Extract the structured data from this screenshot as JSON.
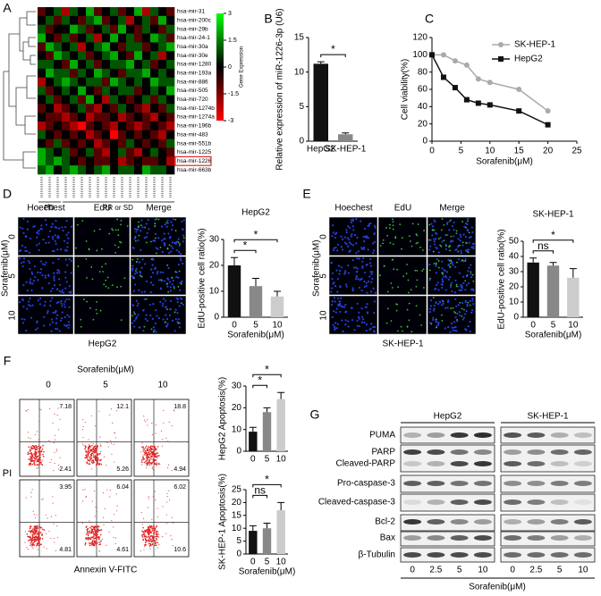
{
  "figure": {
    "panel_labels": [
      "A",
      "B",
      "C",
      "D",
      "E",
      "F",
      "G"
    ]
  },
  "chart_data": [
    {
      "type": "heatmap",
      "rows": [
        "hsa-mir-31",
        "hsa-mir-200c",
        "hsa-mir-29b",
        "hsa-mir-24-1",
        "hsa-mir-30a",
        "hsa-mir-30e",
        "hsa-mir-1280",
        "hsa-mir-193a",
        "hsa-mir-886",
        "hsa-mir-505",
        "hsa-mir-720",
        "hsa-mir-1274b",
        "hsa-mir-1274a",
        "hsa-mir-196b",
        "hsa-mir-483",
        "hsa-mir-551b",
        "hsa-mir-1225",
        "hsa-mir-1226",
        "hsa-mir-663b"
      ],
      "values": [
        [
          -1,
          0,
          1,
          -2,
          1,
          0,
          2,
          -1,
          0,
          1,
          -1,
          0,
          2,
          -2,
          1,
          0,
          -1
        ],
        [
          0,
          1,
          -1,
          1,
          0,
          -1,
          1,
          2,
          -1,
          0,
          1,
          -2,
          0,
          1,
          -1,
          2,
          0
        ],
        [
          1,
          -1,
          0,
          0,
          2,
          1,
          -1,
          0,
          1,
          -1,
          2,
          0,
          -1,
          1,
          0,
          -1,
          1
        ],
        [
          2,
          0,
          -1,
          1,
          -1,
          0,
          1,
          -2,
          0,
          2,
          0,
          1,
          -1,
          0,
          2,
          1,
          -1
        ],
        [
          -1,
          2,
          1,
          0,
          1,
          -2,
          0,
          1,
          2,
          0,
          -1,
          1,
          1,
          -1,
          0,
          1,
          2
        ],
        [
          0,
          -1,
          2,
          1,
          0,
          1,
          -1,
          0,
          1,
          2,
          0,
          -1,
          2,
          0,
          1,
          -2,
          0
        ],
        [
          1,
          1,
          0,
          -1,
          2,
          0,
          1,
          -1,
          0,
          1,
          1,
          2,
          0,
          1,
          -1,
          0,
          1
        ],
        [
          0,
          2,
          1,
          1,
          -1,
          1,
          0,
          2,
          1,
          0,
          -1,
          1,
          1,
          2,
          0,
          1,
          0
        ],
        [
          -2,
          0,
          1,
          2,
          1,
          0,
          1,
          1,
          -1,
          2,
          1,
          0,
          1,
          0,
          2,
          1,
          1
        ],
        [
          1,
          -1,
          0,
          1,
          0,
          2,
          0,
          -1,
          1,
          0,
          1,
          1,
          -1,
          0,
          1,
          0,
          2
        ],
        [
          0,
          1,
          -1,
          0,
          1,
          -1,
          2,
          0,
          -2,
          1,
          0,
          -1,
          0,
          1,
          -1,
          1,
          0
        ],
        [
          -1,
          0,
          -2,
          -1,
          0,
          1,
          -1,
          -2,
          0,
          -1,
          1,
          0,
          -1,
          -2,
          0,
          -1,
          1
        ],
        [
          0,
          -1,
          -1,
          -2,
          -1,
          0,
          -2,
          -1,
          -1,
          0,
          -2,
          -1,
          0,
          -1,
          -2,
          0,
          -1
        ],
        [
          -2,
          -1,
          0,
          -1,
          -2,
          -3,
          -1,
          0,
          -1,
          -2,
          0,
          -1,
          -2,
          -1,
          0,
          -1,
          -2
        ],
        [
          1,
          0,
          -1,
          0,
          -1,
          0,
          -2,
          -1,
          0,
          -3,
          -1,
          0,
          -1,
          0,
          -1,
          -2,
          0
        ],
        [
          0,
          -1,
          1,
          -1,
          0,
          -1,
          0,
          -2,
          -1,
          0,
          -1,
          1,
          0,
          -1,
          0,
          -1,
          1
        ],
        [
          2,
          1,
          0,
          1,
          -1,
          0,
          1,
          -1,
          -2,
          0,
          1,
          -1,
          -2,
          0,
          1,
          0,
          -1
        ],
        [
          2,
          1,
          2,
          1,
          0,
          -1,
          0,
          -1,
          -1,
          0,
          -2,
          -1,
          0,
          -1,
          -1,
          0,
          -2
        ],
        [
          1,
          2,
          0,
          1,
          2,
          1,
          0,
          1,
          2,
          0,
          1,
          1,
          0,
          2,
          1,
          1,
          0
        ]
      ],
      "zlim": [
        -3,
        3
      ],
      "colorbar_ticks": [
        3,
        1.5,
        0,
        -1.5,
        -3
      ],
      "colorbar_label": "Gene Expression",
      "groups": [
        "PD",
        "PR or SD"
      ],
      "highlight_row": 17
    },
    {
      "type": "bar",
      "categories": [
        "HepG2",
        "SK-HEP-1"
      ],
      "values": [
        11.2,
        1.0
      ],
      "errors": [
        0.3,
        0.2
      ],
      "colors": [
        "#111111",
        "#888888"
      ],
      "ylim": [
        0,
        15
      ],
      "yticks": [
        0,
        5,
        10,
        15
      ],
      "y_label": "Relative expression of miR-1226-3p (U6)",
      "annotations": [
        "*"
      ]
    },
    {
      "type": "line",
      "x": [
        0,
        2,
        4,
        6,
        8,
        10,
        15,
        20
      ],
      "series": [
        {
          "name": "SK-HEP-1",
          "color": "#aaaaaa",
          "marker": "circle",
          "values": [
            100,
            100,
            93,
            88,
            72,
            68,
            60,
            35
          ]
        },
        {
          "name": "HepG2",
          "color": "#111111",
          "marker": "square",
          "values": [
            100,
            74,
            62,
            48,
            44,
            42,
            35,
            19
          ]
        }
      ],
      "xlim": [
        0,
        25
      ],
      "xticks": [
        0,
        5,
        10,
        15,
        20,
        25
      ],
      "ylim": [
        0,
        120
      ],
      "yticks": [
        0,
        20,
        40,
        60,
        80,
        100,
        120
      ],
      "x_label": "Sorafenib(μM)",
      "y_label": "Cell viability(%)",
      "legend": "upper right"
    },
    {
      "type": "bar",
      "title": "HepG2",
      "categories": [
        "0",
        "5",
        "10"
      ],
      "values": [
        20,
        12,
        8
      ],
      "errors": [
        3,
        3,
        2
      ],
      "colors": [
        "#111111",
        "#888888",
        "#cccccc"
      ],
      "ylim": [
        0,
        30
      ],
      "yticks": [
        0,
        10,
        20,
        30
      ],
      "x_label": "Sorafenib(μM)",
      "y_label": "EdU-positive cell ratio(%)",
      "annotations": [
        "*",
        "*"
      ]
    },
    {
      "type": "bar",
      "title": "SK-HEP-1",
      "categories": [
        "0",
        "5",
        "10"
      ],
      "values": [
        36,
        34,
        26
      ],
      "errors": [
        3,
        2,
        6
      ],
      "colors": [
        "#111111",
        "#888888",
        "#cccccc"
      ],
      "ylim": [
        0,
        50
      ],
      "yticks": [
        0,
        10,
        20,
        30,
        40,
        50
      ],
      "x_label": "Sorafenib(μM)",
      "y_label": "EdU-positive cell ratio(%)",
      "annotations": [
        "*",
        "ns"
      ]
    },
    {
      "type": "bar",
      "categories": [
        "0",
        "5",
        "10"
      ],
      "values": [
        9,
        18,
        24
      ],
      "errors": [
        2,
        2,
        3
      ],
      "colors": [
        "#111111",
        "#888888",
        "#cccccc"
      ],
      "ylim": [
        0,
        30
      ],
      "yticks": [
        0,
        10,
        20,
        30
      ],
      "y_label": "HepG2 Apoptosis(%)",
      "annotations": [
        "*",
        "*"
      ]
    },
    {
      "type": "bar",
      "categories": [
        "0",
        "5",
        "10"
      ],
      "values": [
        9,
        10,
        17
      ],
      "errors": [
        2,
        2,
        3
      ],
      "colors": [
        "#111111",
        "#888888",
        "#cccccc"
      ],
      "ylim": [
        0,
        25
      ],
      "yticks": [
        0,
        5,
        10,
        15,
        20,
        25
      ],
      "x_label": "Sorafenib(μM)",
      "y_label": "SK-HEP-1 Apoptosis(%)",
      "annotations": [
        "*",
        "ns"
      ]
    }
  ],
  "microscopy": [
    {
      "channels": [
        "Hoechest",
        "EdU",
        "Merge"
      ],
      "dose_label": "Sorafenib(μM)",
      "doses": [
        "0",
        "5",
        "10"
      ],
      "cell_line": "HepG2"
    },
    {
      "channels": [
        "Hoechest",
        "EdU",
        "Merge"
      ],
      "dose_label": "Sorafenib(μM)",
      "doses": [
        "0",
        "5",
        "10"
      ],
      "cell_line": "SK-HEP-1"
    }
  ],
  "flow": {
    "title": "Sorafenib(μM)",
    "doses": [
      "0",
      "5",
      "10"
    ],
    "y_label": "PI",
    "x_label": "Annexin V-FITC",
    "rows": [
      [
        [
          7.18,
          2.41
        ],
        [
          12.1,
          5.26
        ],
        [
          18.8,
          4.94
        ]
      ],
      [
        [
          3.95,
          4.81
        ],
        [
          6.04,
          4.61
        ],
        [
          6.02,
          10.6
        ]
      ]
    ]
  },
  "western": {
    "groups": [
      "HepG2",
      "SK-HEP-1"
    ],
    "lanes": [
      "0",
      "2.5",
      "5",
      "10"
    ],
    "proteins": [
      "PUMA",
      "PARP",
      "Cleaved-PARP",
      "Pro-caspase-3",
      "Cleaved-caspase-3",
      "Bcl-2",
      "Bax",
      "β-Tubulin"
    ],
    "x_label": "Sorafenib(μM)"
  }
}
